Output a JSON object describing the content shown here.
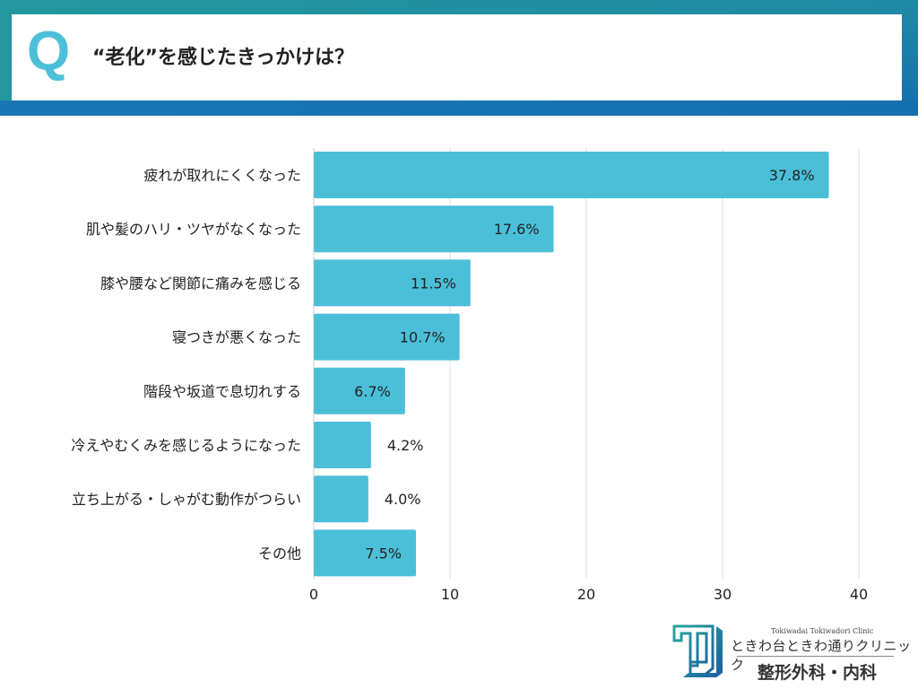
{
  "header": {
    "q_mark": "Q",
    "title": "“老化”を感じたきっかけは？"
  },
  "chart_data": {
    "type": "bar",
    "orientation": "horizontal",
    "categories": [
      "疲れが取れにくくなった",
      "肌や髪のハリ・ツヤがなくなった",
      "膝や腰など関節に痛みを感じる",
      "寝つきが悪くなった",
      "階段や坂道で息切れする",
      "冷えやむくみを感じるようになった",
      "立ち上がる・しゃがむ動作がつらい",
      "その他"
    ],
    "values": [
      37.8,
      17.6,
      11.5,
      10.7,
      6.7,
      4.2,
      4.0,
      7.5
    ],
    "data_labels": [
      "37.8%",
      "17.6%",
      "11.5%",
      "10.7%",
      "6.7%",
      "4.2%",
      "4.0%",
      "7.5%"
    ],
    "xlim": [
      0,
      40
    ],
    "x_ticks": [
      "0",
      "10",
      "20",
      "30",
      "40"
    ],
    "grid": true,
    "bar_color": "#4bbfd8"
  },
  "logo": {
    "name_en": "Tokiwadai Tokiwadori Clinic",
    "name_jp": "ときわ台ときわ通りクリニック",
    "departments": "整形外科・内科"
  }
}
